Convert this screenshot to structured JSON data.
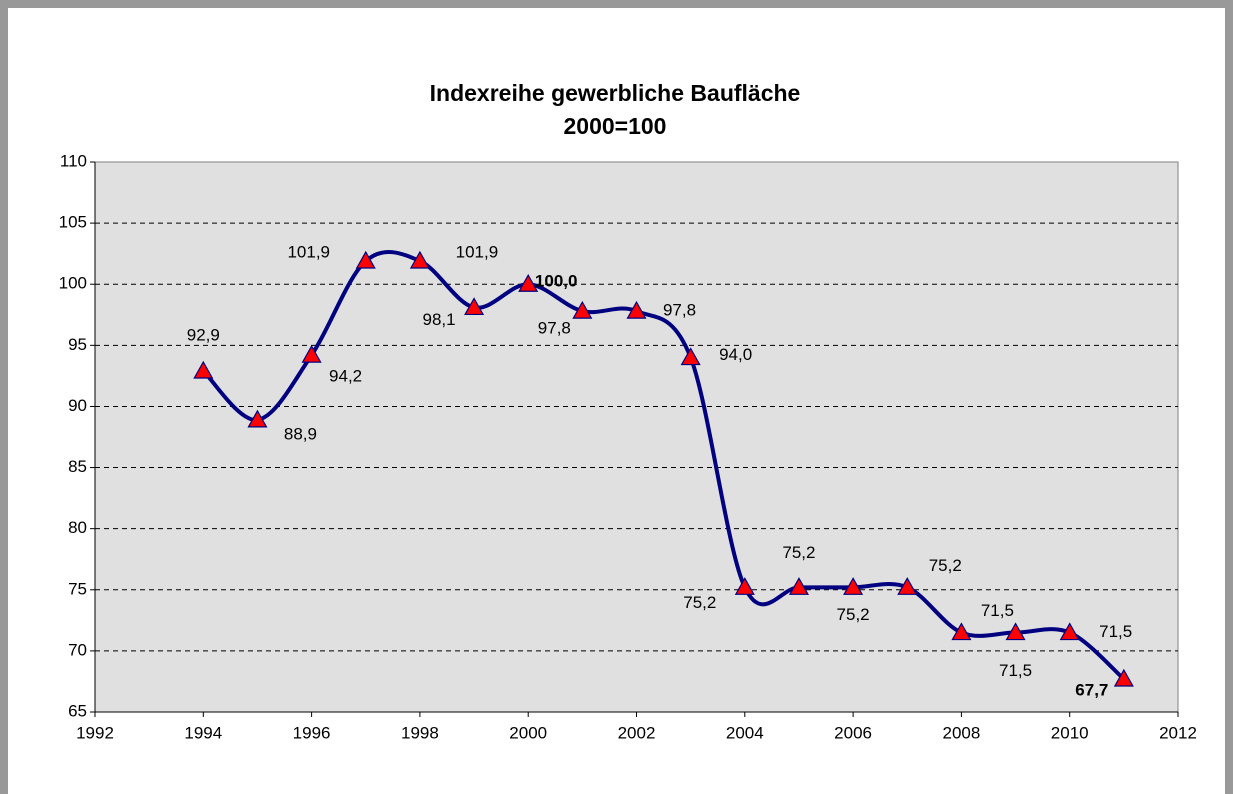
{
  "chart_data": {
    "type": "line",
    "title": "Indexreihe gewerbliche Baufläche",
    "subtitle": "2000=100",
    "x": [
      1994,
      1995,
      1996,
      1997,
      1998,
      1999,
      2000,
      2001,
      2002,
      2003,
      2004,
      2005,
      2006,
      2007,
      2008,
      2009,
      2010,
      2011
    ],
    "series": [
      {
        "name": "Index",
        "color": "#000080",
        "marker_color": "#ff0000",
        "values": [
          92.9,
          88.9,
          94.2,
          101.9,
          101.9,
          98.1,
          100.0,
          97.8,
          97.8,
          94.0,
          75.2,
          75.2,
          75.2,
          75.2,
          71.5,
          71.5,
          71.5,
          67.7
        ],
        "value_labels": [
          "92,9",
          "88,9",
          "94,2",
          "101,9",
          "101,9",
          "98,1",
          "100,0",
          "97,8",
          "97,8",
          "94,0",
          "75,2",
          "75,2",
          "75,2",
          "75,2",
          "71,5",
          "71,5",
          "71,5",
          "67,7"
        ]
      }
    ],
    "xlim": [
      1992,
      2012
    ],
    "xticks": [
      1992,
      1994,
      1996,
      1998,
      2000,
      2002,
      2004,
      2006,
      2008,
      2010,
      2012
    ],
    "ylim": [
      65,
      110
    ],
    "yticks": [
      65,
      70,
      75,
      80,
      85,
      90,
      95,
      100,
      105,
      110
    ],
    "grid": true
  }
}
